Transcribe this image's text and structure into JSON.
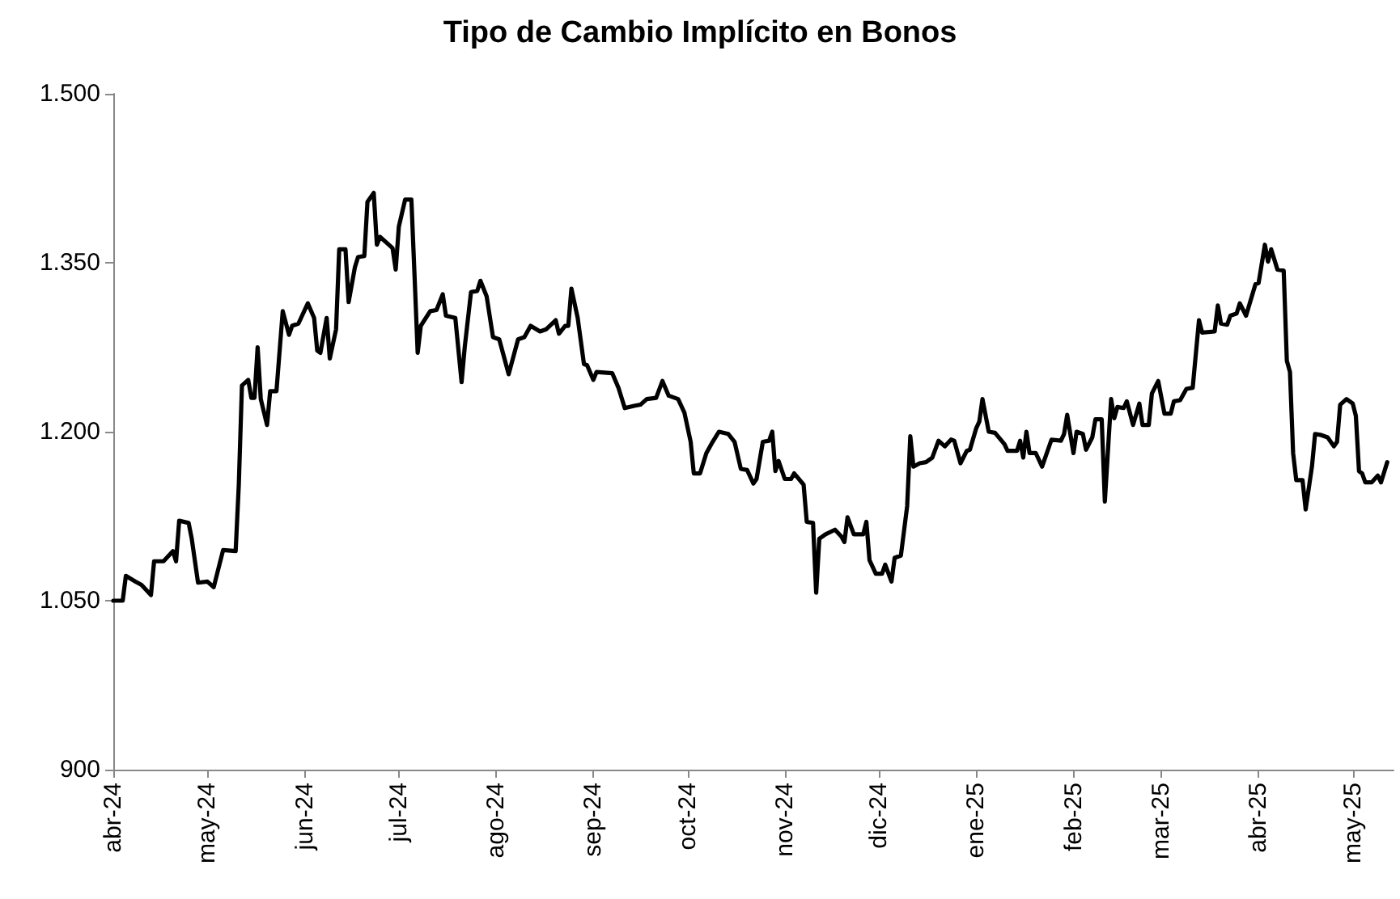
{
  "chart_data": {
    "type": "line",
    "title": "Tipo de Cambio Implícito en Bonos",
    "x": [
      "2024-04-01",
      "2024-04-04",
      "2024-04-05",
      "2024-04-08",
      "2024-04-10",
      "2024-04-13",
      "2024-04-14",
      "2024-04-17",
      "2024-04-20",
      "2024-04-21",
      "2024-04-22",
      "2024-04-25",
      "2024-04-26",
      "2024-04-28",
      "2024-05-01",
      "2024-05-03",
      "2024-05-06",
      "2024-05-10",
      "2024-05-11",
      "2024-05-12",
      "2024-05-14",
      "2024-05-15",
      "2024-05-16",
      "2024-05-17",
      "2024-05-18",
      "2024-05-20",
      "2024-05-21",
      "2024-05-23",
      "2024-05-25",
      "2024-05-27",
      "2024-05-28",
      "2024-05-30",
      "2024-06-02",
      "2024-06-04",
      "2024-06-05",
      "2024-06-06",
      "2024-06-08",
      "2024-06-09",
      "2024-06-11",
      "2024-06-12",
      "2024-06-14",
      "2024-06-15",
      "2024-06-17",
      "2024-06-18",
      "2024-06-20",
      "2024-06-21",
      "2024-06-23",
      "2024-06-24",
      "2024-06-25",
      "2024-06-27",
      "2024-06-29",
      "2024-06-30",
      "2024-07-01",
      "2024-07-03",
      "2024-07-05",
      "2024-07-06",
      "2024-07-07",
      "2024-07-08",
      "2024-07-11",
      "2024-07-13",
      "2024-07-15",
      "2024-07-16",
      "2024-07-19",
      "2024-07-21",
      "2024-07-22",
      "2024-07-24",
      "2024-07-26",
      "2024-07-27",
      "2024-07-29",
      "2024-07-31",
      "2024-08-02",
      "2024-08-05",
      "2024-08-08",
      "2024-08-10",
      "2024-08-12",
      "2024-08-15",
      "2024-08-17",
      "2024-08-20",
      "2024-08-21",
      "2024-08-23",
      "2024-08-24",
      "2024-08-25",
      "2024-08-27",
      "2024-08-29",
      "2024-08-30",
      "2024-09-01",
      "2024-09-02",
      "2024-09-07",
      "2024-09-09",
      "2024-09-11",
      "2024-09-14",
      "2024-09-16",
      "2024-09-18",
      "2024-09-21",
      "2024-09-23",
      "2024-09-25",
      "2024-09-28",
      "2024-09-30",
      "2024-10-02",
      "2024-10-03",
      "2024-10-05",
      "2024-10-07",
      "2024-10-09",
      "2024-10-11",
      "2024-10-14",
      "2024-10-16",
      "2024-10-18",
      "2024-10-20",
      "2024-10-22",
      "2024-10-23",
      "2024-10-25",
      "2024-10-27",
      "2024-10-28",
      "2024-10-29",
      "2024-10-30",
      "2024-11-01",
      "2024-11-03",
      "2024-11-04",
      "2024-11-07",
      "2024-11-08",
      "2024-11-10",
      "2024-11-11",
      "2024-11-12",
      "2024-11-14",
      "2024-11-17",
      "2024-11-19",
      "2024-11-20",
      "2024-11-21",
      "2024-11-23",
      "2024-11-26",
      "2024-11-27",
      "2024-11-28",
      "2024-11-30",
      "2024-12-02",
      "2024-12-03",
      "2024-12-05",
      "2024-12-06",
      "2024-12-08",
      "2024-12-10",
      "2024-12-11",
      "2024-12-12",
      "2024-12-14",
      "2024-12-16",
      "2024-12-18",
      "2024-12-20",
      "2024-12-22",
      "2024-12-24",
      "2024-12-25",
      "2024-12-27",
      "2024-12-29",
      "2024-12-30",
      "2025-01-01",
      "2025-01-02",
      "2025-01-03",
      "2025-01-05",
      "2025-01-07",
      "2025-01-10",
      "2025-01-11",
      "2025-01-14",
      "2025-01-15",
      "2025-01-16",
      "2025-01-17",
      "2025-01-18",
      "2025-01-20",
      "2025-01-22",
      "2025-01-25",
      "2025-01-28",
      "2025-01-29",
      "2025-01-30",
      "2025-02-01",
      "2025-02-02",
      "2025-02-04",
      "2025-02-05",
      "2025-02-07",
      "2025-02-08",
      "2025-02-10",
      "2025-02-11",
      "2025-02-13",
      "2025-02-14",
      "2025-02-15",
      "2025-02-17",
      "2025-02-18",
      "2025-02-20",
      "2025-02-22",
      "2025-02-23",
      "2025-02-25",
      "2025-02-26",
      "2025-02-28",
      "2025-03-02",
      "2025-03-04",
      "2025-03-05",
      "2025-03-07",
      "2025-03-09",
      "2025-03-11",
      "2025-03-13",
      "2025-03-14",
      "2025-03-18",
      "2025-03-19",
      "2025-03-20",
      "2025-03-22",
      "2025-03-23",
      "2025-03-25",
      "2025-03-26",
      "2025-03-28",
      "2025-03-31",
      "2025-04-01",
      "2025-04-03",
      "2025-04-04",
      "2025-04-05",
      "2025-04-07",
      "2025-04-09",
      "2025-04-10",
      "2025-04-11",
      "2025-04-12",
      "2025-04-13",
      "2025-04-15",
      "2025-04-16",
      "2025-04-18",
      "2025-04-19",
      "2025-04-21",
      "2025-04-23",
      "2025-04-25",
      "2025-04-26",
      "2025-04-27",
      "2025-04-29",
      "2025-05-01",
      "2025-05-02",
      "2025-05-03",
      "2025-05-04",
      "2025-05-05",
      "2025-05-07",
      "2025-05-09",
      "2025-05-10",
      "2025-05-12"
    ],
    "series": [
      {
        "color": "#000000",
        "values": [
          1050,
          1050,
          1072,
          1067,
          1064,
          1055,
          1085,
          1085,
          1094,
          1085,
          1121,
          1119,
          1105,
          1066,
          1067,
          1062,
          1095,
          1094,
          1153,
          1241,
          1246,
          1230,
          1230,
          1275,
          1229,
          1206,
          1236,
          1236,
          1307,
          1286,
          1294,
          1296,
          1314,
          1301,
          1272,
          1270,
          1301,
          1265,
          1291,
          1362,
          1362,
          1315,
          1346,
          1355,
          1356,
          1404,
          1412,
          1366,
          1373,
          1368,
          1363,
          1344,
          1382,
          1406,
          1406,
          1339,
          1270,
          1294,
          1307,
          1308,
          1322,
          1303,
          1301,
          1244,
          1275,
          1324,
          1325,
          1334,
          1320,
          1284,
          1282,
          1251,
          1282,
          1284,
          1294,
          1289,
          1291,
          1299,
          1287,
          1294,
          1294,
          1327,
          1301,
          1260,
          1259,
          1246,
          1253,
          1252,
          1239,
          1221,
          1223,
          1224,
          1229,
          1230,
          1245,
          1232,
          1229,
          1217,
          1191,
          1163,
          1163,
          1181,
          1191,
          1200,
          1198,
          1191,
          1167,
          1166,
          1154,
          1158,
          1191,
          1192,
          1200,
          1165,
          1174,
          1158,
          1158,
          1163,
          1153,
          1120,
          1119,
          1057,
          1105,
          1109,
          1113,
          1107,
          1102,
          1124,
          1109,
          1109,
          1120,
          1086,
          1074,
          1074,
          1082,
          1067,
          1088,
          1090,
          1134,
          1196,
          1169,
          1172,
          1173,
          1177,
          1192,
          1187,
          1193,
          1192,
          1172,
          1183,
          1184,
          1203,
          1209,
          1229,
          1200,
          1199,
          1189,
          1183,
          1183,
          1192,
          1177,
          1200,
          1181,
          1181,
          1169,
          1193,
          1192,
          1198,
          1215,
          1181,
          1200,
          1198,
          1184,
          1195,
          1211,
          1211,
          1138,
          1229,
          1212,
          1222,
          1221,
          1227,
          1206,
          1225,
          1206,
          1206,
          1234,
          1245,
          1216,
          1216,
          1227,
          1228,
          1238,
          1239,
          1299,
          1288,
          1289,
          1312,
          1296,
          1295,
          1303,
          1305,
          1314,
          1303,
          1331,
          1332,
          1366,
          1351,
          1362,
          1344,
          1343,
          1263,
          1253,
          1181,
          1157,
          1157,
          1131,
          1169,
          1198,
          1197,
          1195,
          1187,
          1191,
          1224,
          1229,
          1225,
          1214,
          1165,
          1163,
          1155,
          1155,
          1161,
          1155,
          1173
        ]
      }
    ],
    "xlim": [
      "2024-04-01",
      "2025-05-14"
    ],
    "xticks": [
      {
        "value": "2024-04-01",
        "label": "abr-24"
      },
      {
        "value": "2024-05-01",
        "label": "may-24"
      },
      {
        "value": "2024-06-01",
        "label": "jun-24"
      },
      {
        "value": "2024-07-01",
        "label": "jul-24"
      },
      {
        "value": "2024-08-01",
        "label": "ago-24"
      },
      {
        "value": "2024-09-01",
        "label": "sep-24"
      },
      {
        "value": "2024-10-01",
        "label": "oct-24"
      },
      {
        "value": "2024-11-01",
        "label": "nov-24"
      },
      {
        "value": "2024-12-01",
        "label": "dic-24"
      },
      {
        "value": "2025-01-01",
        "label": "ene-25"
      },
      {
        "value": "2025-02-01",
        "label": "feb-25"
      },
      {
        "value": "2025-03-01",
        "label": "mar-25"
      },
      {
        "value": "2025-04-01",
        "label": "abr-25"
      },
      {
        "value": "2025-05-01",
        "label": "may-25"
      }
    ],
    "ylim": [
      900,
      1500
    ],
    "yticks": [
      900,
      {
        "value": 1050,
        "label": "1.050"
      },
      {
        "value": 1200,
        "label": "1.200"
      },
      {
        "value": 1350,
        "label": "1.350"
      },
      {
        "value": 1500,
        "label": "1.500"
      }
    ],
    "grid": false,
    "marker": "none",
    "line_style": "solid"
  }
}
